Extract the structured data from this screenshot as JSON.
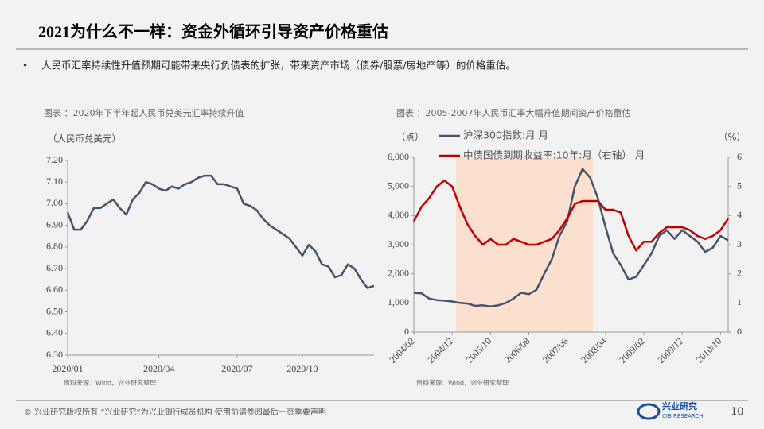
{
  "title": "2021为什么不一样：资金外循环引导资产价格重估",
  "bullet": "人民币汇率持续性升值预期可能带来央行负债表的扩张，带来资产市场（债券/股票/房地产等）的价格重估。",
  "chart_data": [
    {
      "type": "line",
      "title": "图表 ：2020年下半年起人民币兑美元汇率持续升值",
      "y_label": "（人民币兑美元）",
      "source": "资料来源：Wind，兴业研究整理",
      "categories": [
        "2020/01",
        null,
        null,
        null,
        null,
        null,
        null,
        null,
        null,
        null,
        null,
        null,
        null,
        null,
        "2020/04",
        null,
        null,
        null,
        null,
        null,
        null,
        null,
        null,
        null,
        null,
        null,
        "2020/07",
        null,
        null,
        null,
        null,
        null,
        null,
        null,
        null,
        null,
        "2020/10",
        null,
        null,
        null,
        null,
        null,
        null,
        null,
        null,
        null,
        null,
        null
      ],
      "values": [
        6.96,
        6.88,
        6.88,
        6.92,
        6.98,
        6.98,
        7.0,
        7.02,
        6.98,
        6.95,
        7.02,
        7.05,
        7.1,
        7.09,
        7.07,
        7.06,
        7.08,
        7.07,
        7.09,
        7.1,
        7.12,
        7.13,
        7.13,
        7.09,
        7.09,
        7.08,
        7.07,
        7.0,
        6.99,
        6.97,
        6.93,
        6.9,
        6.88,
        6.86,
        6.84,
        6.8,
        6.76,
        6.81,
        6.78,
        6.72,
        6.71,
        6.66,
        6.67,
        6.72,
        6.7,
        6.65,
        6.61,
        6.62
      ],
      "color": "#44546a",
      "ylim": [
        6.3,
        7.2
      ],
      "yticks": [
        {
          "value": 6.3,
          "label": "6.30"
        },
        {
          "value": 6.4,
          "label": "6.40"
        },
        {
          "value": 6.5,
          "label": "6.50"
        },
        {
          "value": 6.6,
          "label": "6.60"
        },
        {
          "value": 6.7,
          "label": "6.70"
        },
        {
          "value": 6.8,
          "label": "6.80"
        },
        {
          "value": 6.9,
          "label": "6.90"
        },
        {
          "value": 7.0,
          "label": "7.00"
        },
        {
          "value": 7.1,
          "label": "7.10"
        },
        {
          "value": 7.2,
          "label": "7.20"
        }
      ]
    },
    {
      "type": "line",
      "title": "图表 ：2005-2007年人民币汇率大幅升值期间资产价格重估",
      "y_label": "（点）",
      "y2_label": "（%）",
      "source": "资料来源：Wind，兴业研究整理",
      "categories": [
        "2004/02",
        null,
        null,
        null,
        null,
        "2004/12",
        null,
        null,
        null,
        null,
        "2005/10",
        null,
        null,
        null,
        null,
        "2006/08",
        null,
        null,
        null,
        null,
        "2007/06",
        null,
        null,
        null,
        null,
        "2008/04",
        null,
        null,
        null,
        null,
        "2009/02",
        null,
        null,
        null,
        null,
        "2009/12",
        null,
        null,
        null,
        null,
        "2010/10",
        null
      ],
      "series": [
        {
          "name": "沪深300指数:月 月",
          "color": "#44546a",
          "values": [
            1350,
            1330,
            1150,
            1100,
            1080,
            1050,
            1000,
            980,
            900,
            920,
            880,
            920,
            1000,
            1150,
            1350,
            1300,
            1450,
            2000,
            2500,
            3300,
            3800,
            5000,
            5600,
            5300,
            4600,
            3600,
            2700,
            2300,
            1800,
            1900,
            2300,
            2700,
            3300,
            3500,
            3200,
            3500,
            3300,
            3100,
            2750,
            2900,
            3300,
            3150
          ]
        },
        {
          "name": "中债国债到期收益率:10年:月（右轴） 月",
          "color": "#c00000",
          "axis": "y2",
          "values": [
            3.8,
            4.3,
            4.6,
            5.0,
            5.2,
            5.0,
            4.3,
            3.7,
            3.3,
            3.0,
            3.2,
            3.0,
            3.0,
            3.2,
            3.1,
            3.0,
            3.0,
            3.1,
            3.2,
            3.5,
            3.9,
            4.4,
            4.5,
            4.5,
            4.5,
            4.2,
            4.2,
            4.1,
            3.3,
            2.8,
            3.1,
            3.1,
            3.4,
            3.6,
            3.6,
            3.6,
            3.5,
            3.3,
            3.2,
            3.3,
            3.5,
            3.9
          ]
        }
      ],
      "ylim": [
        0,
        6000
      ],
      "yticks": [
        0,
        {
          "value": 1000,
          "label": "1,000"
        },
        {
          "value": 2000,
          "label": "2,000"
        },
        {
          "value": 3000,
          "label": "3,000"
        },
        {
          "value": 4000,
          "label": "4,000"
        },
        {
          "value": 5000,
          "label": "5,000"
        },
        {
          "value": 6000,
          "label": "6,000"
        }
      ],
      "y2lim": [
        0,
        6
      ],
      "y2ticks": [
        0,
        1,
        2,
        3,
        4,
        5,
        6
      ],
      "legend": "top-left"
    }
  ],
  "footer": {
    "copyright": "©  兴业研究版权所有    “兴业研究”为兴业银行成员机构    使用前请参阅最后一页重要声明",
    "logo": "兴业研究",
    "logo_en": "CIB RESEARCH",
    "page": "10"
  }
}
